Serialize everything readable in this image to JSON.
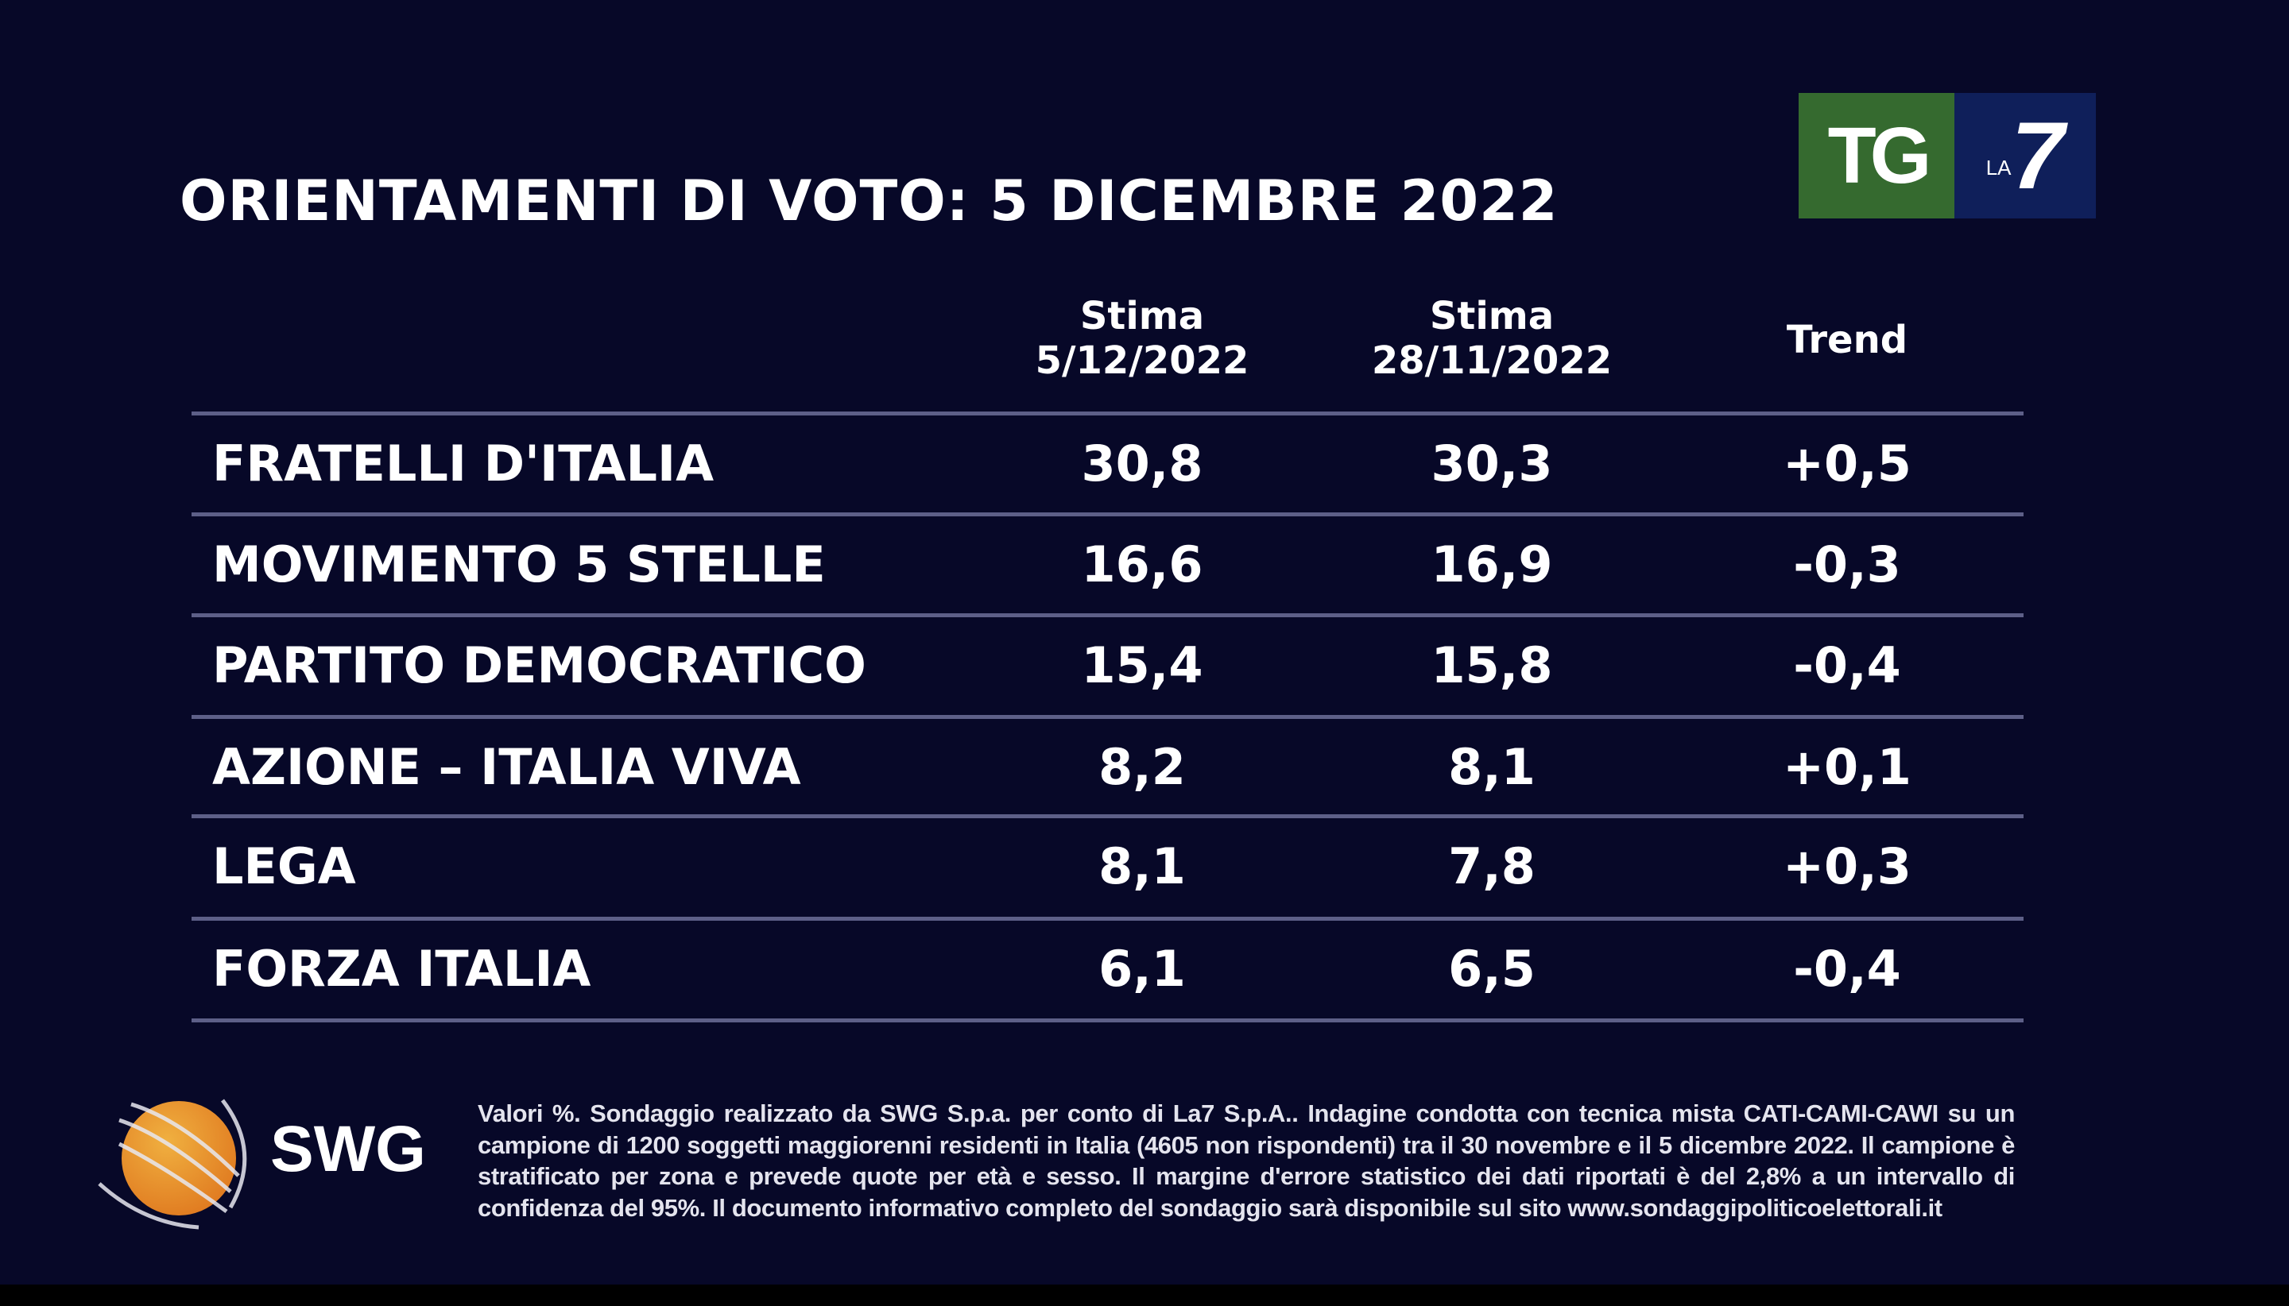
{
  "title": "ORIENTAMENTI DI VOTO: 5 DICEMBRE 2022",
  "logo": {
    "tg": "TG",
    "la": "LA",
    "seven": "7",
    "colors": {
      "green": "#356a2f",
      "blue": "#0f1f5a"
    }
  },
  "columns": [
    {
      "line1": "Stima",
      "line2": "5/12/2022"
    },
    {
      "line1": "Stima",
      "line2": "28/11/2022"
    },
    {
      "line1": "Trend",
      "line2": ""
    }
  ],
  "rows": [
    {
      "party": "FRATELLI D'ITALIA",
      "current": "30,8",
      "previous": "30,3",
      "trend": "+0,5"
    },
    {
      "party": "MOVIMENTO 5 STELLE",
      "current": "16,6",
      "previous": "16,9",
      "trend": "-0,3"
    },
    {
      "party": "PARTITO DEMOCRATICO",
      "current": "15,4",
      "previous": "15,8",
      "trend": "-0,4"
    },
    {
      "party": "AZIONE – ITALIA VIVA",
      "current": "8,2",
      "previous": "8,1",
      "trend": "+0,1"
    },
    {
      "party": "LEGA",
      "current": "8,1",
      "previous": "7,8",
      "trend": "+0,3"
    },
    {
      "party": "FORZA ITALIA",
      "current": "6,1",
      "previous": "6,5",
      "trend": "-0,4"
    }
  ],
  "swg_logo": "SWG",
  "footnote": "Valori %. Sondaggio realizzato da SWG S.p.a. per conto di La7 S.p.A.. Indagine condotta con tecnica mista CATI-CAMI-CAWI su un campione di 1200 soggetti maggiorenni residenti in Italia (4605 non rispondenti) tra il 30 novembre e il 5 dicembre 2022. Il campione è stratificato per zona e prevede quote per età e sesso. Il margine d'errore statistico dei dati riportati è del 2,8% a un intervallo di confidenza del 95%. Il documento informativo completo del sondaggio sarà disponibile sul sito www.sondaggipoliticoelettorali.it"
}
